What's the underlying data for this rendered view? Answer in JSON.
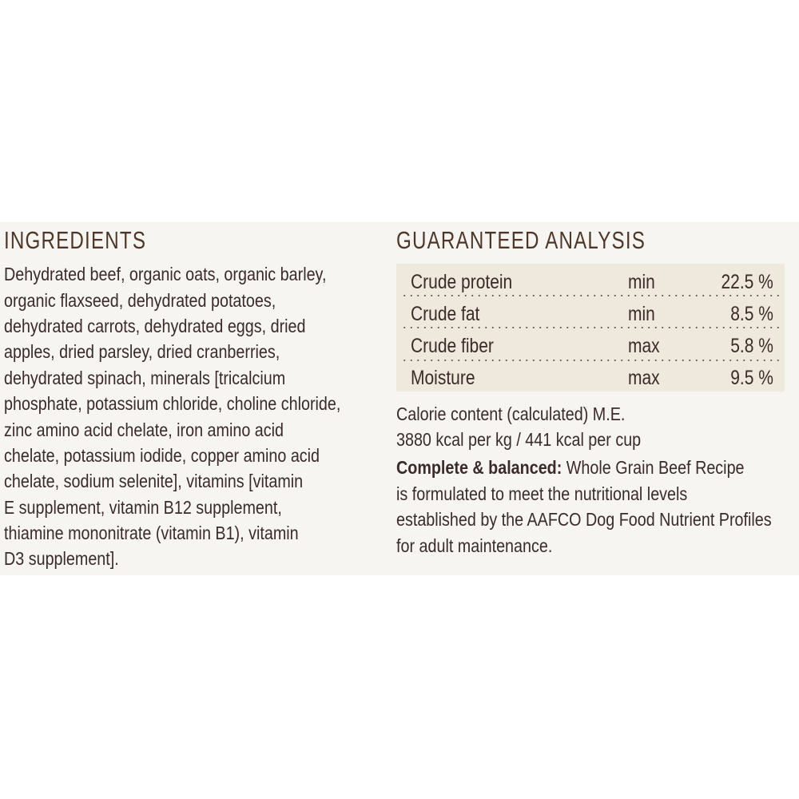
{
  "ingredients": {
    "heading": "INGREDIENTS",
    "lines": [
      "Dehydrated beef, organic oats, organic barley,",
      "organic flaxseed, dehydrated potatoes,",
      "dehydrated carrots, dehydrated eggs, dried",
      "apples, dried parsley, dried cranberries,",
      "dehydrated spinach, minerals [tricalcium",
      "phosphate, potassium chloride, choline chloride,",
      "zinc amino acid chelate, iron amino acid",
      "chelate, potassium iodide, copper amino acid",
      "chelate, sodium selenite], vitamins [vitamin",
      "E supplement, vitamin B12 supplement,",
      "thiamine mononitrate (vitamin B1), vitamin",
      "D3 supplement]."
    ]
  },
  "analysis": {
    "heading": "GUARANTEED ANALYSIS",
    "rows": [
      {
        "name": "Crude protein",
        "qualifier": "min",
        "value": "22.5 %"
      },
      {
        "name": "Crude fat",
        "qualifier": "min",
        "value": "8.5 %"
      },
      {
        "name": "Crude fiber",
        "qualifier": "max",
        "value": "5.8 %"
      },
      {
        "name": "Moisture",
        "qualifier": "max",
        "value": "9.5 %"
      }
    ],
    "calorie_line1": "Calorie content (calculated) M.E.",
    "calorie_line2": "3880 kcal per kg / 441 kcal per cup",
    "complete_bold": "Complete & balanced:",
    "complete_line1": " Whole Grain Beef Recipe",
    "complete_lines": [
      "is formulated to meet the nutritional levels",
      "established by the AAFCO Dog Food Nutrient Profiles",
      "for adult maintenance."
    ]
  },
  "colors": {
    "label_bg": "#f6f5f1",
    "table_bg": "#efe8dc",
    "text": "#3b2a2a",
    "heading": "#4e3628"
  }
}
